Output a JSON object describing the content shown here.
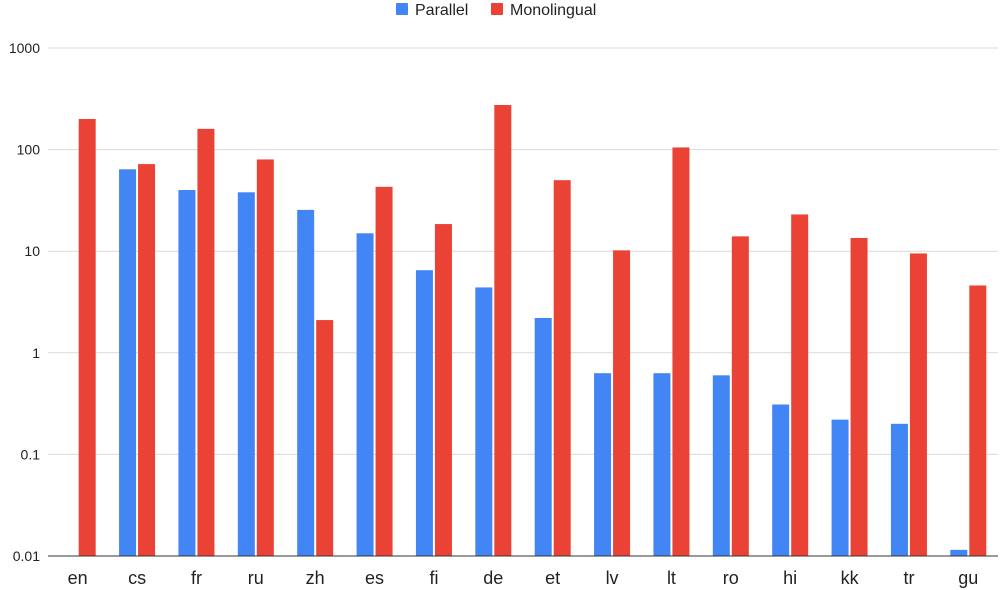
{
  "chart_data": {
    "type": "bar",
    "title": "",
    "xlabel": "",
    "ylabel": "",
    "yscale": "log",
    "ylim": [
      0.01,
      1000
    ],
    "yticks": [
      "0.01",
      "0.1",
      "1",
      "10",
      "100",
      "1000"
    ],
    "grid": true,
    "legend_position": "top-center",
    "categories": [
      "en",
      "cs",
      "fr",
      "ru",
      "zh",
      "es",
      "fi",
      "de",
      "et",
      "lv",
      "lt",
      "ro",
      "hi",
      "kk",
      "tr",
      "gu"
    ],
    "series": [
      {
        "name": "Parallel",
        "color": "#4285f4",
        "values": [
          null,
          64,
          40,
          38,
          25.5,
          15,
          6.5,
          4.4,
          2.2,
          0.63,
          0.63,
          0.6,
          0.31,
          0.22,
          0.2,
          0.0115
        ]
      },
      {
        "name": "Monolingual",
        "color": "#ea4335",
        "values": [
          200,
          72,
          160,
          80,
          2.1,
          43,
          18.5,
          275,
          50,
          10.2,
          105,
          14,
          23,
          13.5,
          9.5,
          4.6
        ]
      }
    ]
  }
}
